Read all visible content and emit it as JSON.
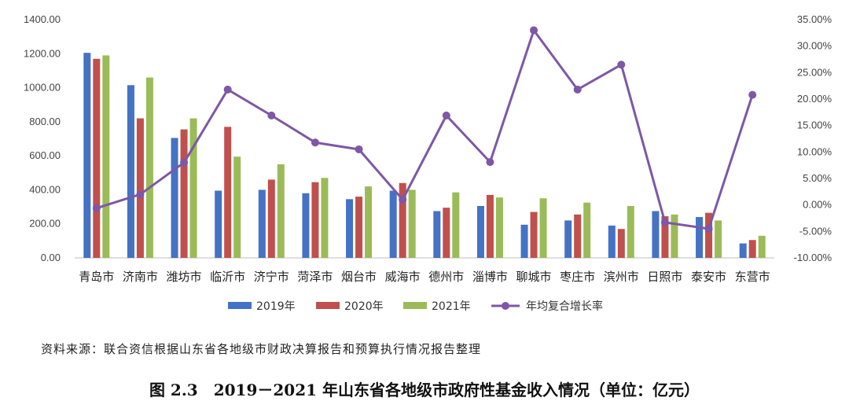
{
  "chart_data": {
    "type": "bar",
    "categories": [
      "青岛市",
      "济南市",
      "潍坊市",
      "临沂市",
      "济宁市",
      "菏泽市",
      "烟台市",
      "威海市",
      "德州市",
      "淄博市",
      "聊城市",
      "枣庄市",
      "滨州市",
      "日照市",
      "泰安市",
      "东营市"
    ],
    "series": [
      {
        "name": "2019年",
        "type": "bar",
        "axis": "left",
        "color": "#4472C4",
        "values": [
          1205,
          1015,
          705,
          395,
          400,
          380,
          345,
          395,
          275,
          305,
          195,
          220,
          190,
          275,
          240,
          85
        ]
      },
      {
        "name": "2020年",
        "type": "bar",
        "axis": "left",
        "color": "#C0504D",
        "values": [
          1170,
          820,
          755,
          770,
          460,
          445,
          360,
          440,
          295,
          370,
          270,
          255,
          170,
          245,
          265,
          105
        ]
      },
      {
        "name": "2021年",
        "type": "bar",
        "axis": "left",
        "color": "#9BBB59",
        "values": [
          1190,
          1060,
          820,
          595,
          550,
          470,
          420,
          400,
          385,
          355,
          350,
          325,
          305,
          255,
          220,
          130
        ]
      },
      {
        "name": "年均复合增长率",
        "type": "line",
        "axis": "right",
        "color": "#7E57A6",
        "values": [
          -0.6,
          2.0,
          8.0,
          21.8,
          16.9,
          11.8,
          10.5,
          1.0,
          16.9,
          8.1,
          33.0,
          21.8,
          26.5,
          -3.3,
          -4.5,
          20.8
        ]
      }
    ],
    "yleft": {
      "lim": [
        0,
        1400
      ],
      "ticks": [
        "0.00",
        "200.00",
        "400.00",
        "600.00",
        "800.00",
        "1000.00",
        "1200.00",
        "1400.00"
      ]
    },
    "yright": {
      "lim": [
        -10,
        35
      ],
      "ticks": [
        "-10.00%",
        "-5.00%",
        "0.00%",
        "5.00%",
        "10.00%",
        "15.00%",
        "20.00%",
        "25.00%",
        "30.00%",
        "35.00%"
      ]
    },
    "grid": false,
    "legend_position": "bottom"
  },
  "source_note": "资料来源：联合资信根据山东省各地级市财政决算报告和预算执行情况报告整理",
  "caption": "图 2.3　2019－2021 年山东省各地级市政府性基金收入情况（单位：亿元）"
}
